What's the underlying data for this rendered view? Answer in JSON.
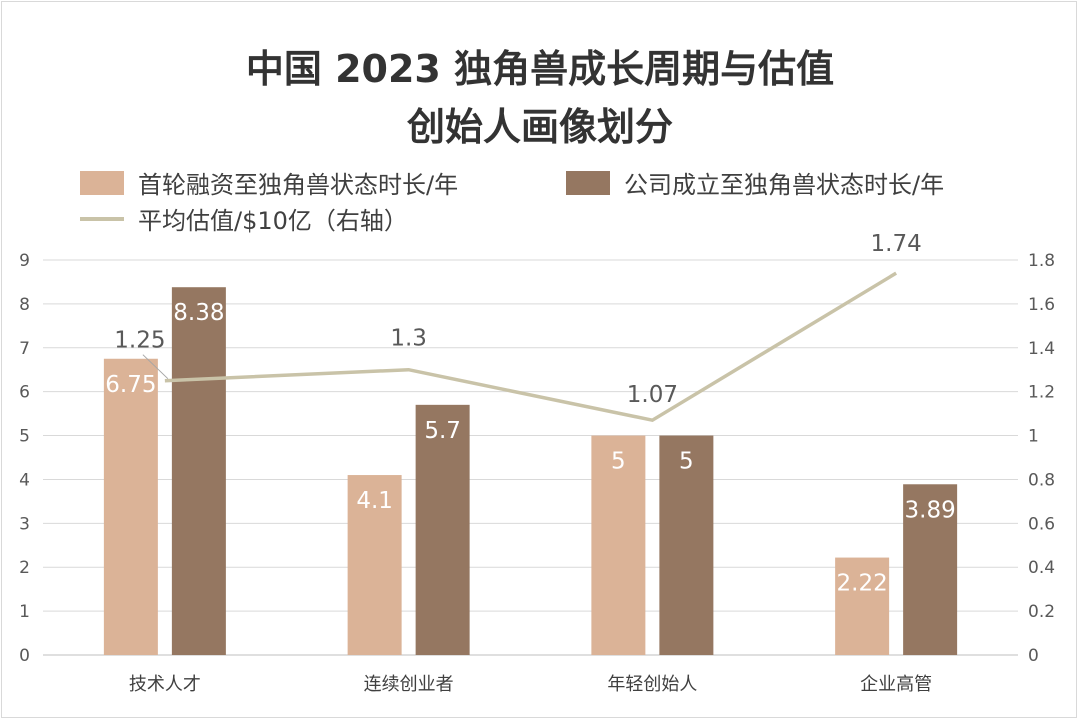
{
  "chart_data": {
    "type": "bar+line",
    "title": "中国 2023 独角兽成长周期与估值",
    "subtitle": "创始人画像划分",
    "categories": [
      "技术人才",
      "连续创业者",
      "年轻创始人",
      "企业高管"
    ],
    "series": [
      {
        "name": "首轮融资至独角兽状态时长/年",
        "type": "bar",
        "axis": "left",
        "color": "#dbb397",
        "values": [
          6.75,
          4.1,
          5,
          2.22
        ]
      },
      {
        "name": "公司成立至独角兽状态时长/年",
        "type": "bar",
        "axis": "left",
        "color": "#957761",
        "values": [
          8.38,
          5.7,
          5,
          3.89
        ]
      },
      {
        "name": "平均估值/$10亿（右轴）",
        "type": "line",
        "axis": "right",
        "color": "#c9c3a8",
        "values": [
          1.25,
          1.3,
          1.07,
          1.74
        ]
      }
    ],
    "y_left": {
      "min": 0,
      "max": 9,
      "step": 1,
      "ticks": [
        "0",
        "1",
        "2",
        "3",
        "4",
        "5",
        "6",
        "7",
        "8",
        "9"
      ]
    },
    "y_right": {
      "min": 0,
      "max": 1.8,
      "step": 0.2,
      "ticks": [
        "0",
        "0.2",
        "0.4",
        "0.6",
        "0.8",
        "1",
        "1.2",
        "1.4",
        "1.6",
        "1.8"
      ]
    },
    "bar_labels": [
      [
        "6.75",
        "4.1",
        "5",
        "2.22"
      ],
      [
        "8.38",
        "5.7",
        "5",
        "3.89"
      ]
    ],
    "line_labels": [
      "1.25",
      "1.3",
      "1.07",
      "1.74"
    ],
    "grid": true,
    "legend_position": "top-left"
  },
  "title": {
    "line1": "中国 2023 独角兽成长周期与估值",
    "line2": "创始人画像划分"
  },
  "legend": {
    "bar1": "首轮融资至独角兽状态时长/年",
    "bar2": "公司成立至独角兽状态时长/年",
    "line": "平均估值/$10亿（右轴）"
  }
}
